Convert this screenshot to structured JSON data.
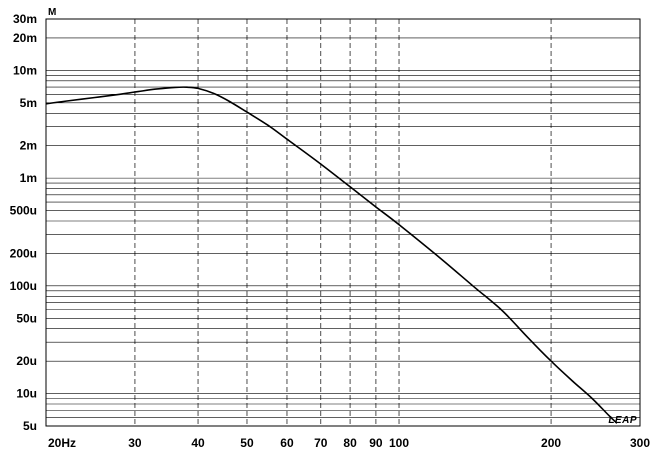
{
  "chart_data": {
    "type": "line",
    "title": "",
    "xlabel": "",
    "ylabel": "M",
    "x_scale": "log",
    "y_scale": "log",
    "xlim": [
      20,
      300
    ],
    "ylim": [
      5e-06,
      0.03
    ],
    "grid": true,
    "x_ticks": [
      {
        "value": 20,
        "label": "20Hz"
      },
      {
        "value": 30,
        "label": "30"
      },
      {
        "value": 40,
        "label": "40"
      },
      {
        "value": 50,
        "label": "50"
      },
      {
        "value": 60,
        "label": "60"
      },
      {
        "value": 70,
        "label": "70"
      },
      {
        "value": 80,
        "label": "80"
      },
      {
        "value": 90,
        "label": "90"
      },
      {
        "value": 100,
        "label": "100"
      },
      {
        "value": 200,
        "label": "200"
      },
      {
        "value": 300,
        "label": "300"
      }
    ],
    "y_ticks": [
      {
        "value": 0.03,
        "label": "30m"
      },
      {
        "value": 0.02,
        "label": "20m"
      },
      {
        "value": 0.01,
        "label": "10m"
      },
      {
        "value": 0.005,
        "label": "5m"
      },
      {
        "value": 0.002,
        "label": "2m"
      },
      {
        "value": 0.001,
        "label": "1m"
      },
      {
        "value": 0.0005,
        "label": "500u"
      },
      {
        "value": 0.0002,
        "label": "200u"
      },
      {
        "value": 0.0001,
        "label": "100u"
      },
      {
        "value": 5e-05,
        "label": "50u"
      },
      {
        "value": 2e-05,
        "label": "20u"
      },
      {
        "value": 1e-05,
        "label": "10u"
      },
      {
        "value": 5e-06,
        "label": "5u"
      }
    ],
    "series": [
      {
        "color": "#000000",
        "x": [
          20,
          22,
          25,
          28,
          30,
          33,
          36,
          38,
          40,
          43,
          46,
          50,
          55,
          60,
          70,
          80,
          90,
          100,
          120,
          140,
          160,
          180,
          200,
          220,
          240,
          260,
          270
        ],
        "y": [
          0.0049,
          0.0052,
          0.0056,
          0.006,
          0.0063,
          0.0067,
          0.00695,
          0.00698,
          0.0068,
          0.0061,
          0.0052,
          0.0041,
          0.0031,
          0.0023,
          0.00135,
          0.00083,
          0.00054,
          0.00037,
          0.000185,
          0.0001,
          5.9e-05,
          3.3e-05,
          2e-05,
          1.32e-05,
          9.2e-06,
          6.3e-06,
          5.3e-06
        ]
      }
    ],
    "watermark": "LEAP"
  }
}
